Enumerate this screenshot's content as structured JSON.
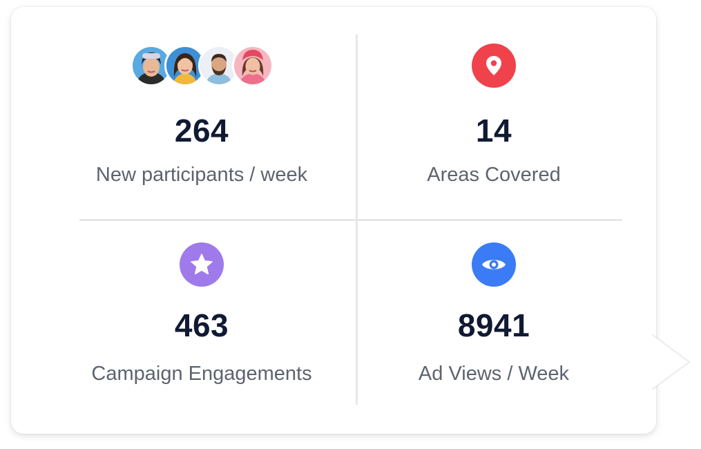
{
  "stats": [
    {
      "value": "264",
      "label": "New participants / week",
      "icon": "participant-avatars"
    },
    {
      "value": "14",
      "label": "Areas Covered",
      "icon": "location-pin-icon",
      "color": "#f0424a"
    },
    {
      "value": "463",
      "label": "Campaign Engagements",
      "icon": "star-icon",
      "color": "#9f7aea"
    },
    {
      "value": "8941",
      "label": "Ad Views / Week",
      "icon": "eye-icon",
      "color": "#3b7cf6"
    }
  ],
  "colors": {
    "value_text": "#111a33",
    "label_text": "#5d636e",
    "divider": "#e6e7ea"
  }
}
